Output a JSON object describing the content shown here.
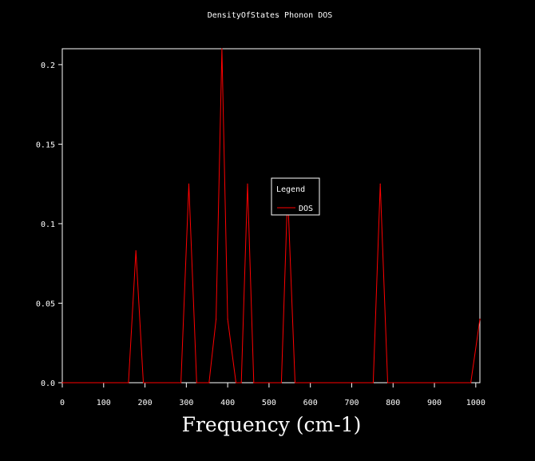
{
  "chart_data": {
    "type": "line",
    "title": "DensityOfStates Phonon DOS",
    "xlabel": "Frequency (cm-1)",
    "ylabel": "",
    "xlim": [
      0,
      1010
    ],
    "ylim": [
      0,
      0.21
    ],
    "x_ticks": [
      0,
      100,
      200,
      300,
      400,
      500,
      600,
      700,
      800,
      900,
      1000
    ],
    "y_ticks": [
      0.0,
      0.05,
      0.1,
      0.15,
      0.2
    ],
    "y_tick_labels": [
      "0.0",
      "0.05",
      "0.1",
      "0.15",
      "0.2"
    ],
    "grid": false,
    "legend": {
      "title": "Legend",
      "placement": "center",
      "entries": [
        "DOS"
      ]
    },
    "series": [
      {
        "name": "DOS",
        "color": "#ff0000",
        "x": [
          0,
          160,
          178,
          196,
          287,
          306,
          325,
          355,
          372,
          386,
          400,
          420,
          433,
          448,
          463,
          530,
          545,
          563,
          752,
          769,
          787,
          988,
          1010
        ],
        "y": [
          0,
          0,
          0.083,
          0,
          0,
          0.125,
          0,
          0,
          0.04,
          0.21,
          0.04,
          0,
          0,
          0.125,
          0,
          0,
          0.12,
          0,
          0,
          0.125,
          0,
          0,
          0.04
        ]
      }
    ]
  },
  "colors": {
    "background": "#000000",
    "axes": "#ffffff",
    "text": "#ffffff",
    "series": "#ff0000"
  }
}
